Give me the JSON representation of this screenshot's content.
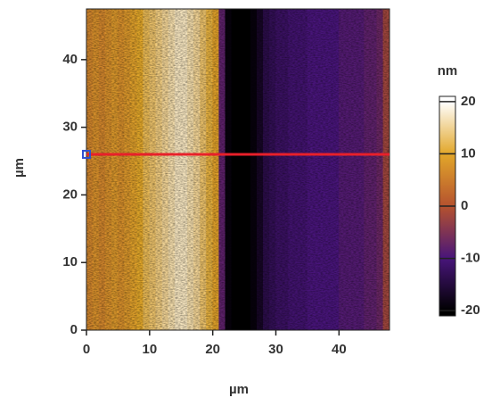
{
  "chart_data": {
    "type": "heatmap",
    "x_label": "µm",
    "y_label": "µm",
    "xlim": [
      0,
      48
    ],
    "ylim": [
      0,
      47.5
    ],
    "xticks": [
      0,
      10,
      20,
      30,
      40
    ],
    "yticks": [
      0,
      10,
      20,
      30,
      40
    ],
    "x": [
      0.5,
      1.5,
      2.5,
      3.5,
      4.5,
      5.5,
      6.5,
      7.5,
      8.5,
      9.5,
      10.5,
      11.5,
      12.5,
      13.5,
      14.5,
      15.5,
      16.5,
      17.5,
      18.5,
      19.5,
      20.5,
      21.5,
      22.5,
      23.5,
      24.5,
      25.5,
      26.5,
      27.5,
      28.5,
      29.5,
      30.5,
      31.5,
      32.5,
      33.5,
      34.5,
      35.5,
      36.5,
      37.5,
      38.5,
      39.5,
      40.5,
      41.5,
      42.5,
      43.5,
      44.5,
      45.5,
      46.5,
      47.5
    ],
    "values": [
      6,
      7,
      6,
      7,
      8,
      7,
      8,
      9,
      10,
      12,
      13,
      14,
      15,
      16,
      17,
      17,
      16,
      15,
      13,
      11,
      9,
      -8,
      -19,
      -20,
      -20,
      -20,
      -19,
      -17,
      -14,
      -13,
      -12,
      -12,
      -11,
      -11,
      -11,
      -10,
      -10,
      -10,
      -10,
      -10,
      -9,
      -9,
      -9,
      -9,
      -8,
      -8,
      -7,
      -2
    ],
    "colorbar": {
      "title": "nm",
      "lim": [
        -21,
        21
      ],
      "ticks": [
        20,
        10,
        0,
        -10,
        -20
      ],
      "colormap": [
        {
          "value": -20,
          "color": "#000000"
        },
        {
          "value": -10,
          "color": "#48157a"
        },
        {
          "value": 0,
          "color": "#b5522e"
        },
        {
          "value": 10,
          "color": "#e2a72a"
        },
        {
          "value": 20,
          "color": "#ffffff"
        }
      ]
    },
    "line": {
      "y": 26,
      "x": [
        0,
        48
      ],
      "color": "#e8202a",
      "marker_color": "#3050d0"
    }
  }
}
